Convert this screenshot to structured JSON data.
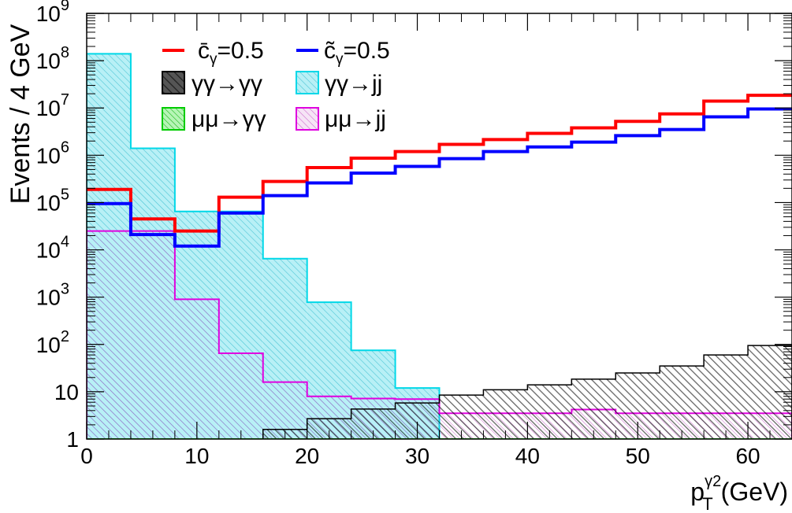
{
  "chart_data": {
    "type": "histogram",
    "ylabel": "Events / 4 GeV",
    "xlabel": {
      "base": "p",
      "sub": "T",
      "sup": "γ2",
      "unit": "(GeV)"
    },
    "xlim": [
      0,
      64
    ],
    "ylim": [
      1,
      1000000000
    ],
    "yscale": "log",
    "x_ticks": [
      "0",
      "10",
      "20",
      "30",
      "40",
      "50",
      "60"
    ],
    "y_ticks": [
      {
        "label": "1"
      },
      {
        "label": "10"
      },
      {
        "base": "10",
        "exp": "2"
      },
      {
        "base": "10",
        "exp": "3"
      },
      {
        "base": "10",
        "exp": "4"
      },
      {
        "base": "10",
        "exp": "5"
      },
      {
        "base": "10",
        "exp": "6"
      },
      {
        "base": "10",
        "exp": "7"
      },
      {
        "base": "10",
        "exp": "8"
      },
      {
        "base": "10",
        "exp": "9"
      }
    ],
    "bin_edges": [
      0,
      4,
      8,
      12,
      16,
      20,
      24,
      28,
      32,
      36,
      40,
      44,
      48,
      52,
      56,
      60,
      64
    ],
    "legend_placement": "top-left",
    "series": [
      {
        "id": "aa_jj",
        "legend": "γγ→jj",
        "style": "filled",
        "color": "#00d8e8",
        "values": [
          140000000,
          1400000,
          65000,
          65000,
          6500,
          780,
          75,
          12,
          1,
          1,
          1,
          1,
          1,
          1,
          1,
          1
        ]
      },
      {
        "id": "mumu_jj",
        "legend": "μμ→jj",
        "style": "hatched",
        "color": "#e000e0",
        "values": [
          25000,
          25000,
          900,
          65,
          16,
          8,
          7.2,
          7,
          3.5,
          3.5,
          3.5,
          4.2,
          3.5,
          3.5,
          3.5,
          3.5
        ]
      },
      {
        "id": "aa_aa",
        "legend": "γγ→γγ",
        "style": "hatched",
        "color": "#000000",
        "values": [
          1,
          1,
          1,
          1,
          1.6,
          2.7,
          4.3,
          5.8,
          8.5,
          11,
          14,
          18.5,
          25,
          35,
          60,
          95
        ]
      },
      {
        "id": "mumu_aa",
        "legend": "μμ→γγ",
        "style": "hatched",
        "color": "#00cc00",
        "values": [
          1,
          1,
          1,
          1,
          1,
          1,
          1,
          1,
          1,
          1,
          1,
          1,
          1,
          1,
          1,
          1
        ]
      },
      {
        "id": "cbar",
        "legend": "c̄γ=0.5",
        "style": "line",
        "color": "#ff0000",
        "values": [
          190000,
          45000,
          25000,
          130000,
          280000,
          550000,
          870000,
          1200000,
          1700000,
          2150000,
          2900000,
          3800000,
          5200000,
          7500000,
          14000000,
          18500000
        ]
      },
      {
        "id": "ctilde",
        "legend": "c̃γ=0.5",
        "style": "line",
        "color": "#0000ff",
        "values": [
          95000,
          21000,
          12000,
          60000,
          140000,
          260000,
          420000,
          580000,
          850000,
          1200000,
          1500000,
          1900000,
          2600000,
          3500000,
          6500000,
          9500000
        ]
      }
    ]
  }
}
